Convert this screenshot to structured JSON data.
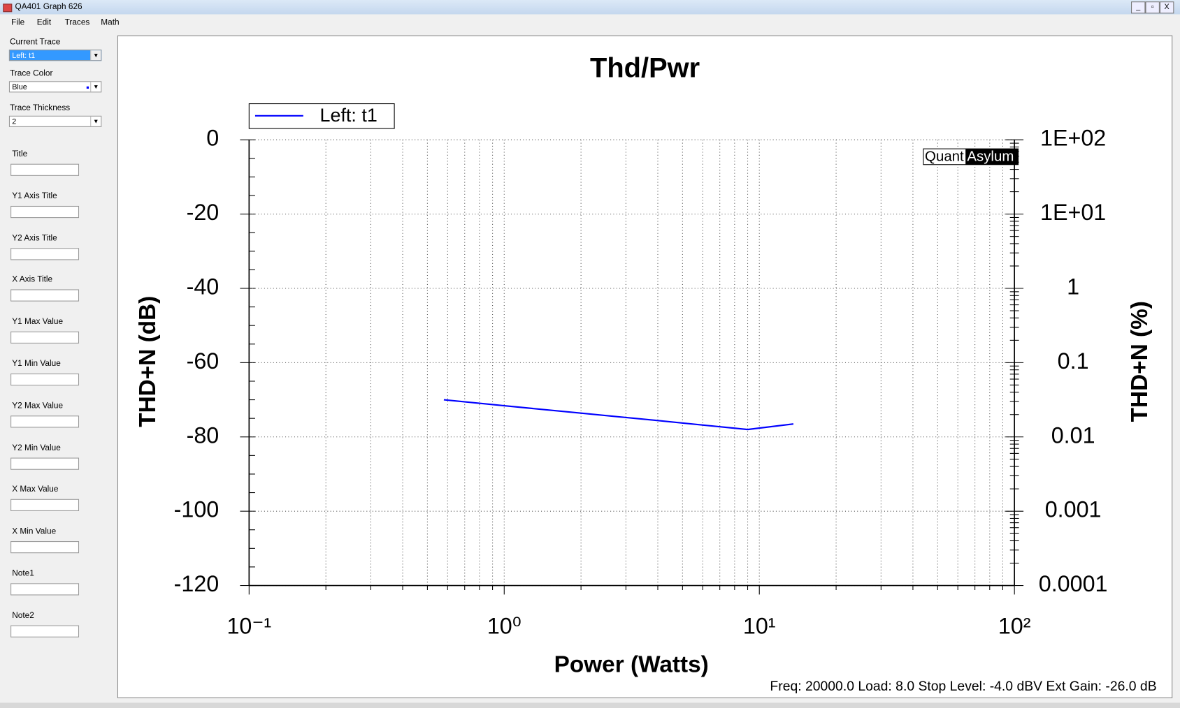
{
  "window": {
    "title": "QA401 Graph 626",
    "menu": [
      "File",
      "Edit",
      "Traces",
      "Math"
    ]
  },
  "sidebar": {
    "current_trace": {
      "label": "Current Trace",
      "value": "Left: t1"
    },
    "trace_color": {
      "label": "Trace Color",
      "value": "Blue"
    },
    "trace_thickness": {
      "label": "Trace Thickness",
      "value": "2"
    },
    "fields": [
      "Title",
      "Y1 Axis Title",
      "Y2 Axis Title",
      "X Axis Title",
      "Y1 Max Value",
      "Y1 Min Value",
      "Y2 Max Value",
      "Y2 Min Value",
      "X Max Value",
      "X Min Value",
      "Note1",
      "Note2"
    ]
  },
  "chart_data": {
    "type": "line",
    "title": "Thd/Pwr",
    "x_label": "Power (Watts)",
    "y_label": "THD+N (dB)",
    "y2_label": "THD+N (%)",
    "x_log": true,
    "y2_log": true,
    "grid": true,
    "legend": "upper left",
    "logo": [
      "Quant",
      "Asylum"
    ],
    "note": "Freq: 20000.0 Load: 8.0 Stop Level: -4.0 dBV  Ext Gain: -26.0 dB",
    "xlim": [
      0.1,
      100
    ],
    "xticks": [
      {
        "value": 0.1,
        "label": "10⁻¹"
      },
      {
        "value": 1,
        "label": "10⁰"
      },
      {
        "value": 10,
        "label": "10¹"
      },
      {
        "value": 100,
        "label": "10²"
      }
    ],
    "ylim": [
      -120,
      0
    ],
    "yticks": [
      -120,
      -100,
      -80,
      -60,
      -40,
      -20,
      0
    ],
    "y2lim": [
      0.0001,
      100
    ],
    "y2ticks": [
      0.0001,
      0.001,
      0.01,
      0.1,
      1,
      {
        "value": 10,
        "label": "1E+01"
      },
      {
        "value": 100,
        "label": "1E+02"
      }
    ],
    "series": [
      {
        "name": "Left: t1",
        "color": "#0000ff",
        "x": [
          0.58,
          1,
          2,
          4,
          9,
          13.6
        ],
        "values": [
          -70,
          -71.6,
          -73.6,
          -75.6,
          -78,
          -76.5
        ]
      }
    ]
  }
}
